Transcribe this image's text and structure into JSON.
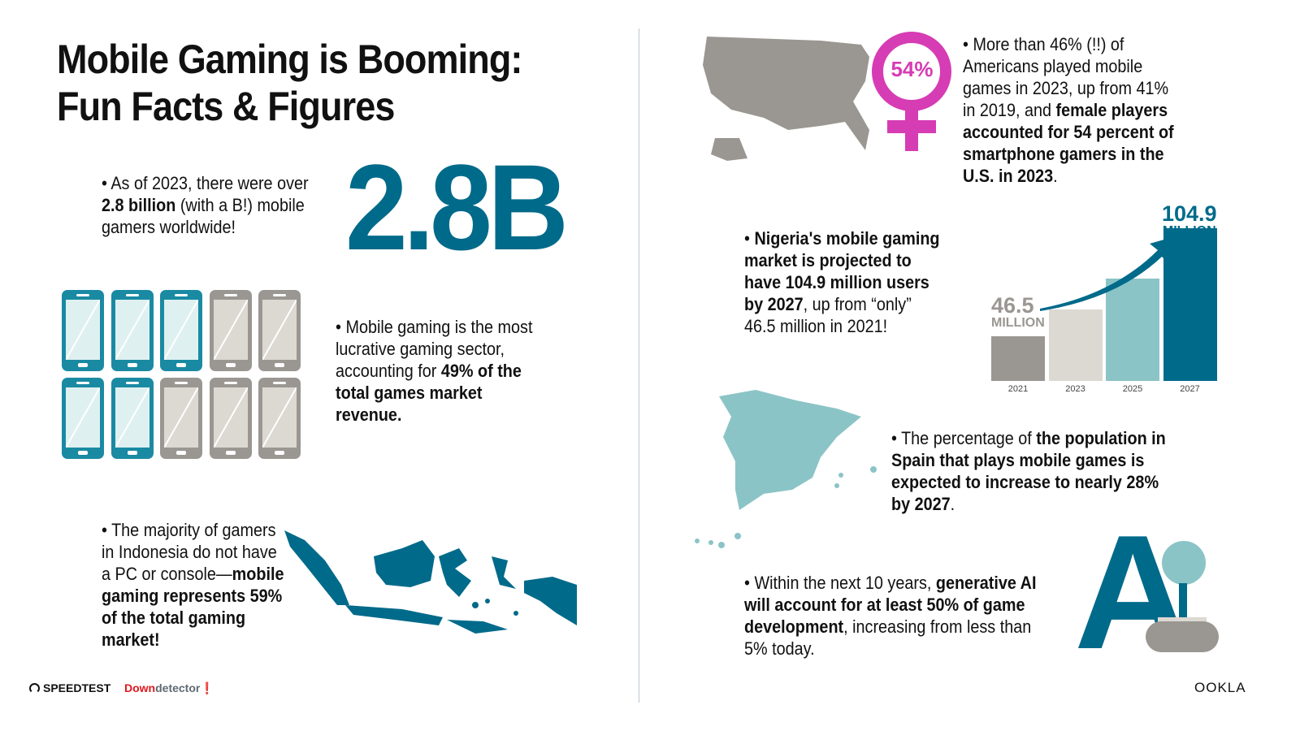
{
  "title": {
    "line1": "Mobile Gaming is Booming:",
    "line2": "Fun Facts & Figures"
  },
  "fact_gamers": {
    "bullet": "•",
    "pre": "As of 2023, there were over ",
    "bold": "2.8 billion",
    "post": " (with a B!) mobile gamers worldwide!",
    "big_number": "2.8B"
  },
  "fact_revenue": {
    "bullet": "•",
    "pre": "Mobile gaming is the most lucrative gaming sector, accounting for ",
    "bold": "49% of the total games market revenue.",
    "phones_highlighted": 5,
    "phones_total": 10
  },
  "fact_indonesia": {
    "bullet": "•",
    "pre": "The majority of gamers in Indonesia do not have a PC or console—",
    "bold": "mobile gaming represents 59% of the total gaming market!"
  },
  "fact_us": {
    "bullet": "•",
    "pre": "More than 46% (!!) of Americans played mobile games in 2023, up from 41% in 2019, and ",
    "bold": "female players accounted for 54 percent of smartphone gamers in the U.S. in 2023",
    "post": ".",
    "badge": "54%"
  },
  "fact_nigeria": {
    "bullet": "•",
    "bold1": "Nigeria's mobile gaming market is projected to have 104.9 million users by 2027",
    "post": ", up from “only” 46.5 million in 2021!"
  },
  "chart_data": {
    "type": "bar",
    "categories": [
      "2021",
      "2023",
      "2025",
      "2027"
    ],
    "values": [
      46.5,
      62,
      80,
      104.9
    ],
    "labels": [
      {
        "value": "46.5",
        "unit": "MILLION"
      },
      null,
      null,
      {
        "value": "104.9",
        "unit": "MILLION"
      }
    ],
    "colors": [
      "#9a9792",
      "#dcd8d2",
      "#8bc4c6",
      "#006a8a"
    ],
    "grid": false
  },
  "fact_spain": {
    "bullet": "•",
    "pre": "The percentage of ",
    "bold": "the population in Spain that plays mobile games is expected to increase to nearly 28% by 2027",
    "post": "."
  },
  "fact_ai": {
    "bullet": "•",
    "pre": "Within the next 10 years, ",
    "bold": "generative AI will account for at least 50% of game development",
    "post": ", increasing from less than 5% today.",
    "logo_letter": "A"
  },
  "footer": {
    "speedtest": "SPEEDTEST",
    "downdetector_red": "Down",
    "downdetector_gray": "detector",
    "ookla": "OOKLA"
  },
  "colors": {
    "teal_dark": "#006a8a",
    "teal_light": "#8bc4c6",
    "gray": "#9a9792",
    "magenta": "#d63cb4"
  }
}
